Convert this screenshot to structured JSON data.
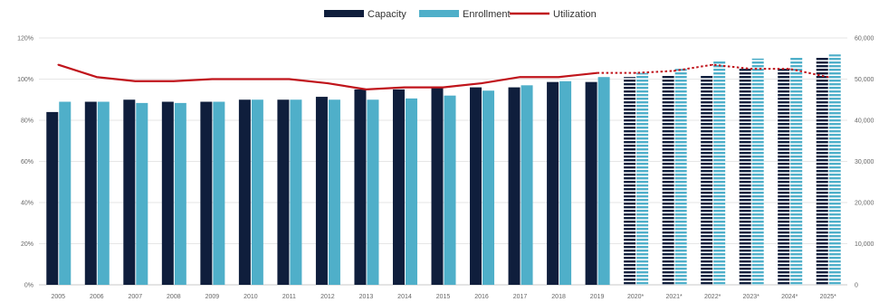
{
  "chart_data": {
    "type": "bar",
    "categories": [
      "2005",
      "2006",
      "2007",
      "2008",
      "2009",
      "2010",
      "2011",
      "2012",
      "2013",
      "2014",
      "2015",
      "2016",
      "2017",
      "2018",
      "2019",
      "2020*",
      "2021*",
      "2022*",
      "2023*",
      "2024*",
      "2025*"
    ],
    "series": [
      {
        "name": "Capacity",
        "axis": "right",
        "color": "#0f1e3c",
        "values": [
          42000,
          44500,
          45000,
          44500,
          44500,
          45000,
          45000,
          45700,
          47500,
          47500,
          48000,
          48000,
          48000,
          49300,
          49300,
          50500,
          51000,
          51000,
          52500,
          52500,
          55500
        ]
      },
      {
        "name": "Enrollment",
        "axis": "right",
        "color": "#4fafc9",
        "values": [
          44500,
          44500,
          44200,
          44200,
          44500,
          45000,
          45000,
          45000,
          45000,
          45300,
          46000,
          47200,
          48500,
          49500,
          50500,
          51500,
          52500,
          54500,
          55000,
          55500,
          56000
        ]
      },
      {
        "name": "Utilization",
        "axis": "left",
        "type": "line",
        "color": "#c0141b",
        "values": [
          107,
          101,
          99,
          99,
          100,
          100,
          100,
          98,
          95,
          96,
          96,
          98,
          101,
          101,
          103,
          103,
          104,
          107,
          105,
          105,
          101
        ]
      }
    ],
    "projected_from": "2020*",
    "left_axis": {
      "ticks": [
        "0%",
        "20%",
        "40%",
        "60%",
        "80%",
        "100%",
        "120%"
      ],
      "ylim": [
        0,
        120
      ]
    },
    "right_axis": {
      "ticks": [
        "0",
        "10,000",
        "20,000",
        "30,000",
        "40,000",
        "50,000",
        "60,000"
      ],
      "ylim": [
        0,
        60000
      ]
    },
    "legend_position": "top-center",
    "grid": true,
    "title": "",
    "xlabel": "",
    "ylabel": ""
  }
}
